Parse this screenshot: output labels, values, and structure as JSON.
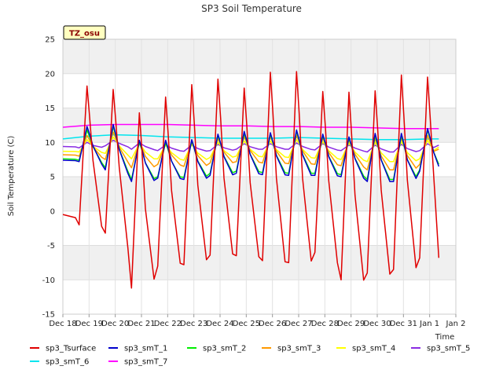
{
  "chart_data": {
    "type": "line",
    "title": "SP3 Soil Temperature",
    "xlabel": "Time",
    "ylabel": "Soil Temperature (C)",
    "ylim": [
      -15,
      25
    ],
    "yticks": [
      -15,
      -10,
      -5,
      0,
      5,
      10,
      15,
      20,
      25
    ],
    "xlim_days": [
      0,
      15
    ],
    "xtick_labels": [
      "Dec 18",
      "Dec 19",
      "Dec 20",
      "Dec 21",
      "Dec 22",
      "Dec 23",
      "Dec 24",
      "Dec 25",
      "Dec 26",
      "Dec 27",
      "Dec 28",
      "Dec 29",
      "Dec 30",
      "Dec 31",
      "Jan 1",
      "Jan 2"
    ],
    "grid": true,
    "legend_position": "bottom",
    "annotation": "TZ_osu",
    "series": [
      {
        "name": "sp3_Tsurface",
        "color": "#e00000",
        "daily_max": [
          18.2,
          17.7,
          14.3,
          16.6,
          18.4,
          19.2,
          17.9,
          20.2,
          20.3,
          17.4,
          17.3,
          17.5,
          19.8,
          19.5
        ],
        "daily_min": [
          -2.0,
          -3.2,
          -11.2,
          -8.0,
          -7.8,
          -6.4,
          -6.5,
          -7.2,
          -7.5,
          -6.0,
          -10.0,
          -9.0,
          -8.5,
          -6.8
        ],
        "start": -0.5,
        "end": -6.8
      },
      {
        "name": "sp3_smT_1",
        "color": "#0000cc",
        "daily_max": [
          12.3,
          12.6,
          10.3,
          10.3,
          10.4,
          11.2,
          11.6,
          11.4,
          11.8,
          11.2,
          10.8,
          11.3,
          11.3,
          12.0
        ],
        "daily_min": [
          7.2,
          6.0,
          4.3,
          4.8,
          4.6,
          5.2,
          5.5,
          5.3,
          5.2,
          5.2,
          5.0,
          4.3,
          4.3,
          5.8
        ],
        "start": 7.4,
        "end": 6.5
      },
      {
        "name": "sp3_smT_2",
        "color": "#00ee00",
        "daily_max": [
          11.8,
          12.3,
          10.0,
          10.0,
          10.2,
          11.0,
          11.3,
          11.2,
          11.6,
          11.0,
          10.6,
          11.0,
          11.0,
          11.8
        ],
        "daily_min": [
          7.4,
          6.3,
          4.6,
          5.0,
          4.9,
          5.5,
          5.8,
          5.6,
          5.5,
          5.5,
          5.3,
          4.6,
          4.6,
          6.0
        ],
        "start": 7.6,
        "end": 6.8
      },
      {
        "name": "sp3_smT_3",
        "color": "#ff9900",
        "daily_max": [
          11.0,
          11.5,
          10.0,
          9.8,
          10.0,
          10.5,
          10.8,
          10.8,
          11.0,
          10.6,
          10.3,
          10.5,
          10.6,
          11.0
        ],
        "daily_min": [
          8.0,
          7.5,
          6.3,
          6.8,
          6.5,
          7.0,
          7.2,
          7.0,
          6.9,
          6.8,
          6.6,
          6.0,
          6.0,
          6.8
        ],
        "start": 8.2,
        "end": 9.0
      },
      {
        "name": "sp3_smT_4",
        "color": "#ffff00",
        "daily_max": [
          10.4,
          10.8,
          9.8,
          9.6,
          9.7,
          10.0,
          10.2,
          10.2,
          10.4,
          10.1,
          9.9,
          10.0,
          10.1,
          10.3
        ],
        "daily_min": [
          8.6,
          8.4,
          7.6,
          7.6,
          7.4,
          7.8,
          8.0,
          7.9,
          7.8,
          7.7,
          7.5,
          7.2,
          7.2,
          7.6
        ],
        "start": 8.7,
        "end": 9.3
      },
      {
        "name": "sp3_smT_5",
        "color": "#8a2be2",
        "daily_max": [
          10.0,
          10.3,
          9.9,
          9.6,
          9.6,
          9.7,
          9.8,
          9.8,
          9.9,
          9.8,
          9.6,
          9.6,
          9.7,
          9.8
        ],
        "daily_min": [
          9.2,
          9.5,
          9.0,
          8.8,
          8.7,
          8.8,
          9.0,
          9.0,
          9.0,
          8.9,
          8.8,
          8.6,
          8.6,
          8.8
        ],
        "start": 9.4,
        "end": 9.6
      },
      {
        "name": "sp3_smT_6",
        "color": "#00e5ee",
        "x_days": [
          0,
          1,
          2,
          3,
          4,
          5,
          6,
          7,
          8,
          9,
          10,
          11,
          12,
          13,
          14,
          14.35
        ],
        "values": [
          10.5,
          10.9,
          11.1,
          11.0,
          10.8,
          10.7,
          10.6,
          10.6,
          10.6,
          10.7,
          10.6,
          10.5,
          10.4,
          10.4,
          10.5,
          10.5
        ]
      },
      {
        "name": "sp3_smT_7",
        "color": "#ff00ff",
        "x_days": [
          0,
          1,
          2,
          3,
          4,
          5,
          6,
          7,
          8,
          9,
          10,
          11,
          12,
          13,
          14,
          14.35
        ],
        "values": [
          12.2,
          12.5,
          12.6,
          12.6,
          12.6,
          12.5,
          12.4,
          12.4,
          12.3,
          12.3,
          12.2,
          12.2,
          12.1,
          12.0,
          12.0,
          12.0
        ]
      }
    ]
  }
}
